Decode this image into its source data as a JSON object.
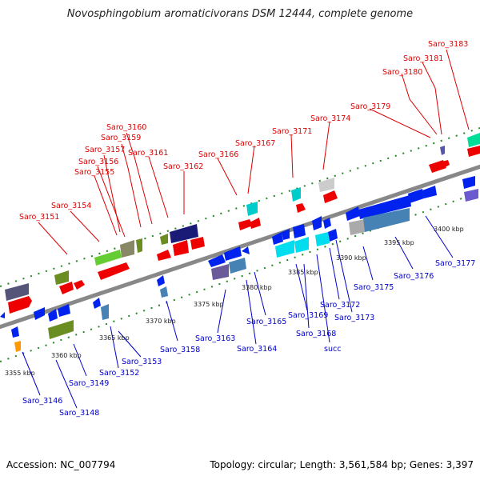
{
  "title": "Novosphingobium aromaticivorans DSM 12444, complete genome",
  "footer": {
    "accession": "Accession: NC_007794",
    "info": "Topology: circular; Length: 3,561,584 bp; Genes: 3,397"
  },
  "colors": {
    "top_labels": "#dd0000",
    "bottom_labels": "#0000cc",
    "backbone": "#999999",
    "forward_gene": "#ff0000",
    "reverse_gene": "#0022ee",
    "ruler_ticks": "#228822"
  },
  "kbp_ticks": [
    "3355 kbp",
    "3360 kbp",
    "3365 kbp",
    "3370 kbp",
    "3375 kbp",
    "3380 kbp",
    "3385 kbp",
    "3390 kbp",
    "3395 kbp",
    "3400 kbp"
  ],
  "top_labels": [
    "Saro_3183",
    "Saro_3181",
    "Saro_3180",
    "Saro_3179",
    "Saro_3174",
    "Saro_3171",
    "Saro_3167",
    "Saro_3166",
    "Saro_3162",
    "Saro_3161",
    "Saro_3160",
    "Saro_3159",
    "Saro_3157",
    "Saro_3156",
    "Saro_3155",
    "Saro_3154",
    "Saro_3151"
  ],
  "bottom_labels": [
    "Saro_3177",
    "Saro_3176",
    "Saro_3175",
    "Saro_3173",
    "Saro_3172",
    "Saro_3169",
    "Saro_3168",
    "succ",
    "Saro_3165",
    "Saro_3164",
    "Saro_3163",
    "Saro_3158",
    "Saro_3153",
    "Saro_3152",
    "Saro_3149",
    "Saro_3148",
    "Saro_3146"
  ]
}
